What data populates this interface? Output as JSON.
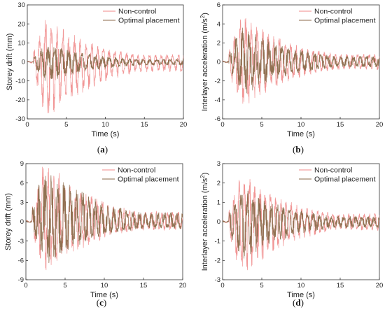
{
  "colors": {
    "non_control": "#f08a8a",
    "optimal_placement": "#8b6a4a"
  },
  "chart_data": [
    {
      "type": "line",
      "caption": "(a)",
      "xlabel": "Time (s)",
      "ylabel": "Storey drift (mm)",
      "xlim": [
        0,
        20
      ],
      "ylim": [
        -30,
        30
      ],
      "xticks": [
        0,
        5,
        10,
        15,
        20
      ],
      "xtick_labels": [
        "0",
        "5",
        "10",
        "15",
        "20"
      ],
      "yticks": [
        -30,
        -20,
        -10,
        0,
        10,
        20,
        30
      ],
      "ytick_labels": [
        "-30",
        "-20",
        "-10",
        "0",
        "10",
        "20",
        "30"
      ],
      "legend_position": "top-right",
      "series": [
        {
          "name": "Non-control",
          "peak_positive": 22,
          "peak_negative": -27
        },
        {
          "name": "Optimal placement",
          "peak_positive": 8,
          "peak_negative": -10
        }
      ]
    },
    {
      "type": "line",
      "caption": "(b)",
      "xlabel": "Time (s)",
      "ylabel": "Interlayer  acceleration (m/s",
      "ylabel_sup": "2",
      "ylabel_end": ")",
      "xlim": [
        0,
        20
      ],
      "ylim": [
        -6,
        6
      ],
      "xticks": [
        0,
        5,
        10,
        15,
        20
      ],
      "xtick_labels": [
        "0",
        "5",
        "10",
        "15",
        "20"
      ],
      "yticks": [
        -6,
        -4,
        -2,
        0,
        2,
        4,
        6
      ],
      "ytick_labels": [
        "-6",
        "-4",
        "-2",
        "0",
        "2",
        "4",
        "6"
      ],
      "legend_position": "top-right",
      "series": [
        {
          "name": "Non-control",
          "peak_positive": 4.6,
          "peak_negative": -4.4
        },
        {
          "name": "Optimal placement",
          "peak_positive": 3.6,
          "peak_negative": -3.3
        }
      ]
    },
    {
      "type": "line",
      "caption": "(c)",
      "xlabel": "Time (s)",
      "ylabel": "Storey drift (mm)",
      "xlim": [
        0,
        20
      ],
      "ylim": [
        -9,
        9
      ],
      "xticks": [
        0,
        5,
        10,
        15,
        20
      ],
      "xtick_labels": [
        "0",
        "5",
        "10",
        "15",
        "20"
      ],
      "yticks": [
        -9,
        -6,
        -3,
        0,
        3,
        6,
        9
      ],
      "ytick_labels": [
        "-9",
        "-6",
        "-3",
        "0",
        "3",
        "6",
        "9"
      ],
      "legend_position": "top-right",
      "series": [
        {
          "name": "Non-control",
          "peak_positive": 8.5,
          "peak_negative": -7.5
        },
        {
          "name": "Optimal placement",
          "peak_positive": 7.2,
          "peak_negative": -6.4
        }
      ]
    },
    {
      "type": "line",
      "caption": "(d)",
      "xlabel": "Time (s)",
      "ylabel": "Interlayer  acceleration (m/s",
      "ylabel_sup": "2",
      "ylabel_end": ")",
      "xlim": [
        0,
        20
      ],
      "ylim": [
        -3,
        3
      ],
      "xticks": [
        0,
        5,
        10,
        15,
        20
      ],
      "xtick_labels": [
        "0",
        "5",
        "10",
        "15",
        "20"
      ],
      "yticks": [
        -3,
        -2,
        -1,
        0,
        1,
        2,
        3
      ],
      "ytick_labels": [
        "-3",
        "-2",
        "-1",
        "0",
        "1",
        "2",
        "3"
      ],
      "legend_position": "top-right",
      "series": [
        {
          "name": "Non-control",
          "peak_positive": 2.2,
          "peak_negative": -2.5
        },
        {
          "name": "Optimal placement",
          "peak_positive": 1.6,
          "peak_negative": -1.9
        }
      ]
    }
  ]
}
